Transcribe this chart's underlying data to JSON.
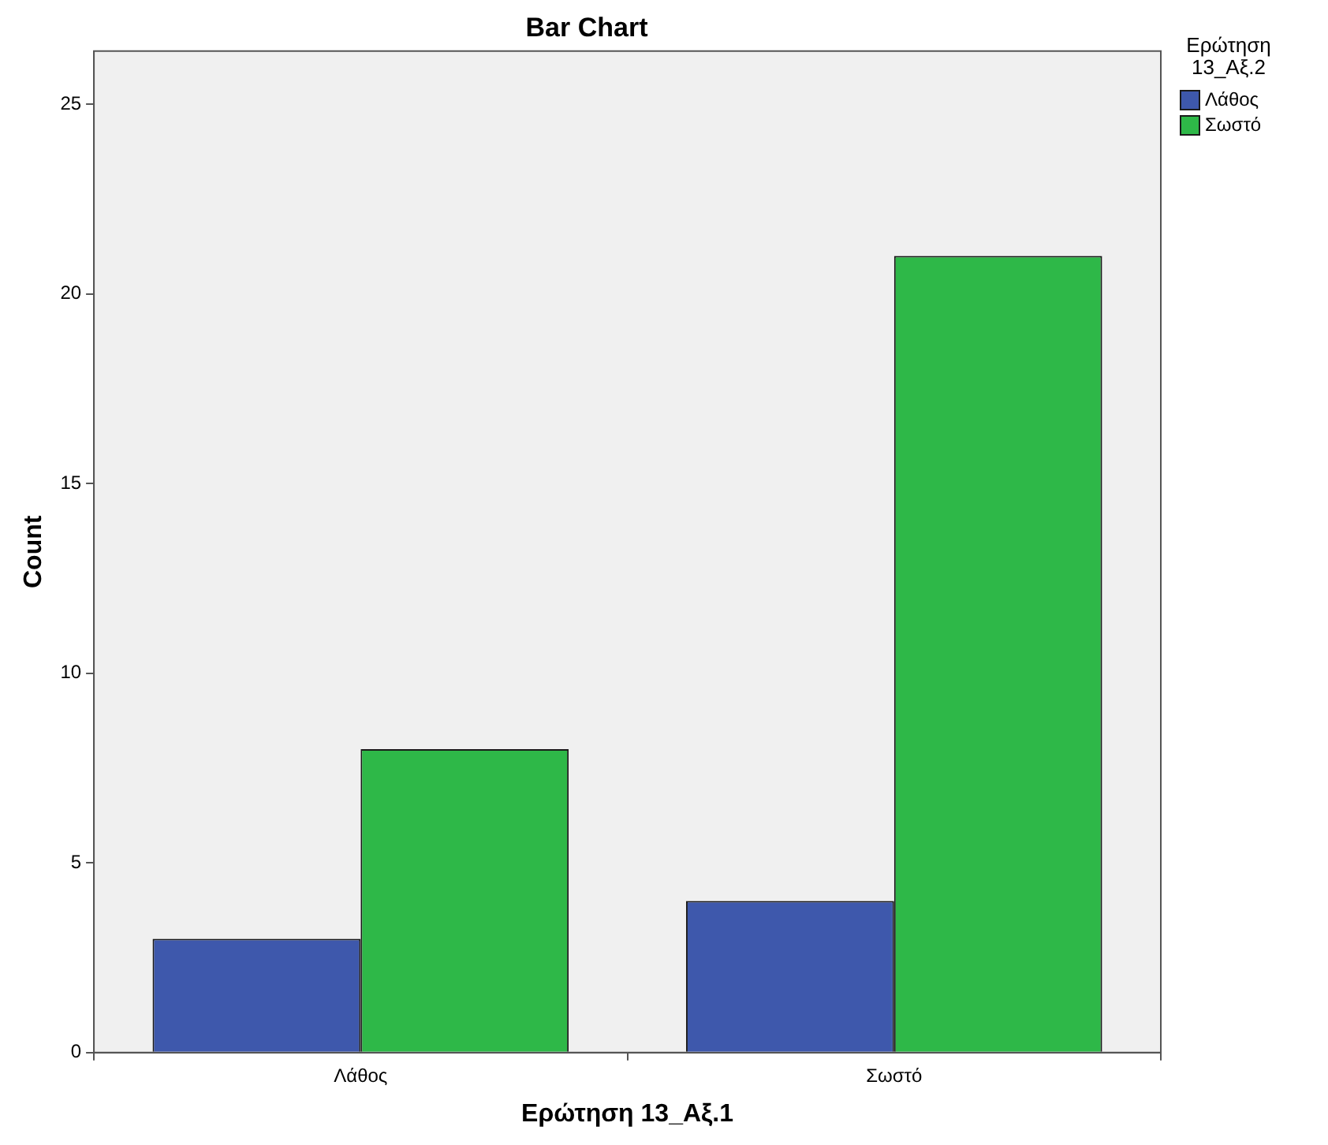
{
  "chart_data": {
    "type": "bar",
    "title": "Bar Chart",
    "xlabel": "Ερώτηση 13_Αξ.1",
    "ylabel": "Count",
    "legend_title": "Ερώτηση 13_Αξ.2",
    "categories": [
      "Λάθος",
      "Σωστό"
    ],
    "series": [
      {
        "name": "Λάθος",
        "color": "#3e58ac",
        "values": [
          3,
          4
        ]
      },
      {
        "name": "Σωστό",
        "color": "#2eb848",
        "values": [
          8,
          21
        ]
      }
    ],
    "ylim": [
      0,
      26.4
    ],
    "yticks": [
      0,
      5,
      10,
      15,
      20,
      25
    ],
    "grid": false,
    "legend": "top right"
  }
}
